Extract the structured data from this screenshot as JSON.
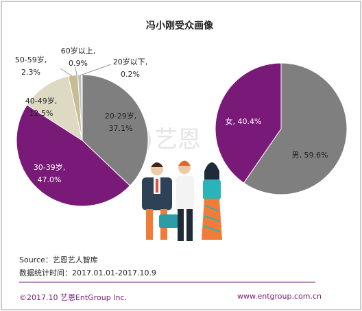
{
  "title": "冯小刚受众画像",
  "chart_data": [
    {
      "type": "pie",
      "categories": [
        "20-29岁",
        "30-39岁",
        "40-49岁",
        "50-59岁",
        "60岁以上",
        "20岁以下"
      ],
      "values": [
        37.1,
        47.0,
        12.5,
        2.3,
        0.9,
        0.2
      ],
      "value_labels": [
        "37.1%",
        "47.0%",
        "12.5%",
        "2.3%",
        "0.9%",
        "0.2%"
      ],
      "colors": [
        "#7f7f7f",
        "#7a1a78",
        "#ddd9c3",
        "#c9bc93",
        "#bfbfbf",
        "#d9d9d9"
      ]
    },
    {
      "type": "pie",
      "categories": [
        "男",
        "女"
      ],
      "values": [
        59.6,
        40.4
      ],
      "value_labels": [
        "59.6%",
        "40.4%"
      ],
      "colors": [
        "#7f7f7f",
        "#7a1a78"
      ]
    }
  ],
  "source": "Source：艺恩艺人智库",
  "date_range": "数据统计时间：2017.01.01-2017.10.9",
  "footer_left": "©2017.10 艺恩EntGroup Inc.",
  "footer_right": "www.entgroup.com.cn"
}
